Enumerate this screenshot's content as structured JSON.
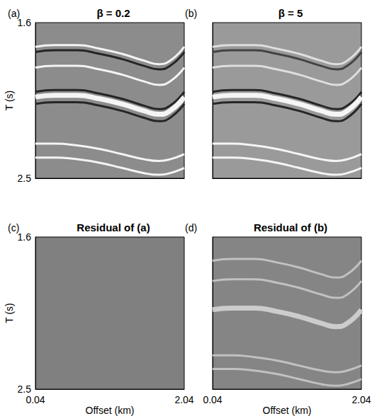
{
  "chart_data": [
    {
      "type": "line",
      "title": "β = 0.2",
      "annotations": [
        "(a)"
      ],
      "ylabel": "T (s)",
      "xlim": [
        0.04,
        2.04
      ],
      "ylim": [
        1.6,
        2.5
      ],
      "xticks": [
        0.04,
        2.04
      ],
      "yticks": [
        1.6,
        2.5
      ],
      "tick_labels": "y",
      "grid": false,
      "x": [
        0.04,
        0.3,
        0.6,
        0.9,
        1.2,
        1.5,
        1.7,
        1.85,
        2.04
      ],
      "series": [
        {
          "color": "#ffffff",
          "values": [
            1.74,
            1.73,
            1.73,
            1.75,
            1.78,
            1.82,
            1.84,
            1.82,
            1.74
          ]
        },
        {
          "color": "#1a1a1a",
          "values": [
            1.77,
            1.76,
            1.76,
            1.78,
            1.81,
            1.85,
            1.87,
            1.85,
            1.77
          ]
        },
        {
          "color": "#ffffff",
          "values": [
            1.86,
            1.85,
            1.85,
            1.87,
            1.9,
            1.94,
            1.96,
            1.94,
            1.86
          ]
        },
        {
          "color": "#1a1a1a",
          "values": [
            2.0,
            1.99,
            1.99,
            2.01,
            2.04,
            2.08,
            2.1,
            2.08,
            2.0
          ]
        },
        {
          "color": "#ffffff",
          "line_style": "thick",
          "values": [
            2.03,
            2.02,
            2.02,
            2.04,
            2.07,
            2.11,
            2.13,
            2.11,
            2.03
          ]
        },
        {
          "color": "#1a1a1a",
          "values": [
            2.07,
            2.06,
            2.06,
            2.08,
            2.11,
            2.15,
            2.17,
            2.15,
            2.07
          ]
        },
        {
          "color": "#ffffff",
          "values": [
            2.3,
            2.3,
            2.31,
            2.33,
            2.36,
            2.39,
            2.4,
            2.39,
            2.36
          ]
        },
        {
          "color": "#ffffff",
          "values": [
            2.38,
            2.38,
            2.39,
            2.41,
            2.44,
            2.47,
            2.48,
            2.47,
            2.44
          ]
        }
      ]
    },
    {
      "type": "line",
      "title": "β = 5",
      "annotations": [
        "(b)"
      ],
      "xlim": [
        0.04,
        2.04
      ],
      "ylim": [
        1.6,
        2.5
      ],
      "xticks": [
        0.04,
        2.04
      ],
      "yticks": [
        1.6,
        2.5
      ],
      "tick_labels": false,
      "grid": false,
      "x": [
        0.04,
        0.3,
        0.6,
        0.9,
        1.2,
        1.5,
        1.7,
        1.85,
        2.04
      ],
      "series": [
        {
          "color": "#e6e6e6",
          "values": [
            1.74,
            1.73,
            1.73,
            1.75,
            1.78,
            1.82,
            1.84,
            1.82,
            1.74
          ]
        },
        {
          "color": "#3a3a3a",
          "values": [
            1.77,
            1.76,
            1.76,
            1.78,
            1.81,
            1.85,
            1.87,
            1.85,
            1.77
          ]
        },
        {
          "color": "#e6e6e6",
          "values": [
            1.86,
            1.85,
            1.85,
            1.87,
            1.9,
            1.94,
            1.96,
            1.94,
            1.86
          ]
        },
        {
          "color": "#1a1a1a",
          "values": [
            2.0,
            1.99,
            1.99,
            2.01,
            2.04,
            2.08,
            2.1,
            2.08,
            2.0
          ]
        },
        {
          "color": "#ffffff",
          "line_style": "thick",
          "values": [
            2.03,
            2.02,
            2.02,
            2.04,
            2.07,
            2.11,
            2.13,
            2.11,
            2.03
          ]
        },
        {
          "color": "#1a1a1a",
          "values": [
            2.07,
            2.06,
            2.06,
            2.08,
            2.11,
            2.15,
            2.17,
            2.15,
            2.07
          ]
        },
        {
          "color": "#ffffff",
          "values": [
            2.3,
            2.3,
            2.31,
            2.33,
            2.36,
            2.39,
            2.4,
            2.39,
            2.36
          ]
        },
        {
          "color": "#ffffff",
          "values": [
            2.38,
            2.38,
            2.39,
            2.41,
            2.44,
            2.47,
            2.48,
            2.47,
            2.44
          ]
        }
      ]
    },
    {
      "type": "line",
      "title": "Residual of (a)",
      "annotations": [
        "(c)"
      ],
      "xlabel": "Offset (km)",
      "ylabel": "T (s)",
      "xlim": [
        0.04,
        2.04
      ],
      "ylim": [
        1.6,
        2.5
      ],
      "xticks": [
        0.04,
        2.04
      ],
      "yticks": [
        1.6,
        2.5
      ],
      "grid": false,
      "x": [
        0.04,
        0.3,
        0.6,
        0.9,
        1.2,
        1.5,
        1.7,
        1.85,
        2.04
      ],
      "series": []
    },
    {
      "type": "line",
      "title": "Residual of (b)",
      "annotations": [
        "(d)"
      ],
      "xlabel": "Offset (km)",
      "xlim": [
        0.04,
        2.04
      ],
      "ylim": [
        1.6,
        2.5
      ],
      "xticks": [
        0.04,
        2.04
      ],
      "yticks": [
        1.6,
        2.5
      ],
      "tick_labels": "x",
      "grid": false,
      "x": [
        0.04,
        0.3,
        0.6,
        0.9,
        1.2,
        1.5,
        1.7,
        1.85,
        2.04
      ],
      "series": [
        {
          "color": "#c8c8c8",
          "values": [
            1.74,
            1.73,
            1.73,
            1.75,
            1.78,
            1.82,
            1.84,
            1.82,
            1.74
          ]
        },
        {
          "color": "#c8c8c8",
          "values": [
            1.86,
            1.85,
            1.85,
            1.87,
            1.9,
            1.94,
            1.96,
            1.94,
            1.86
          ]
        },
        {
          "color": "#d4d4d4",
          "line_style": "thick",
          "values": [
            2.03,
            2.02,
            2.02,
            2.04,
            2.07,
            2.11,
            2.13,
            2.11,
            2.03
          ]
        },
        {
          "color": "#c8c8c8",
          "values": [
            2.3,
            2.3,
            2.31,
            2.33,
            2.36,
            2.39,
            2.4,
            2.39,
            2.36
          ]
        },
        {
          "color": "#c8c8c8",
          "values": [
            2.38,
            2.38,
            2.39,
            2.41,
            2.44,
            2.47,
            2.48,
            2.47,
            2.44
          ]
        }
      ]
    }
  ]
}
